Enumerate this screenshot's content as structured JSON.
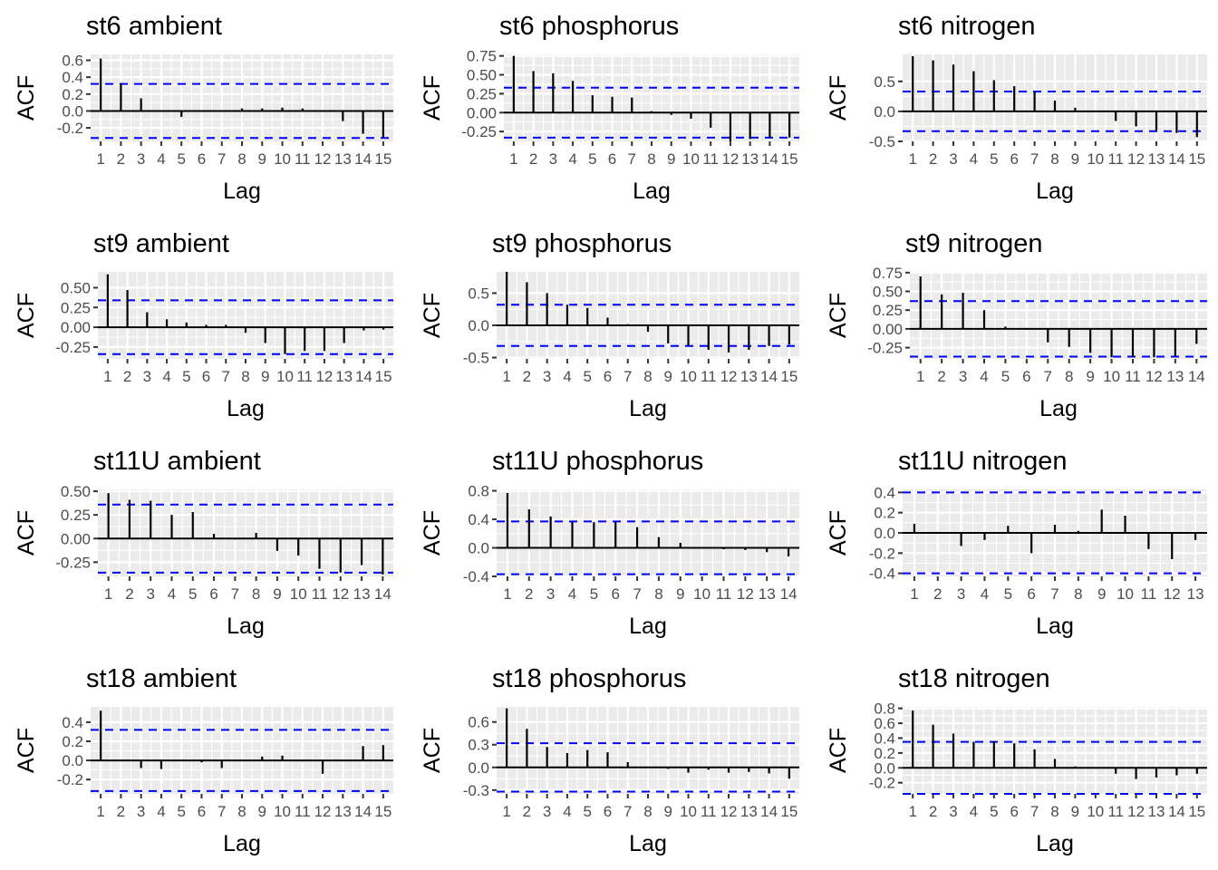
{
  "colors": {
    "panel_bg": "#ebebeb",
    "grid": "#ffffff",
    "bar": "#000000",
    "conf_line": "#0000ff",
    "tick_text": "#4d4d4d"
  },
  "chart_data": [
    {
      "type": "bar",
      "title": "st6 ambient",
      "xlabel": "Lag",
      "ylabel": "ACF",
      "xlim": [
        0.5,
        15.5
      ],
      "ylim": [
        -0.36,
        0.67
      ],
      "yticks": [
        -0.2,
        0.0,
        0.2,
        0.4,
        0.6
      ],
      "ytick_labels": [
        "-0.2",
        "0.0",
        "0.2",
        "0.4",
        "0.6"
      ],
      "conf_limit": 0.32,
      "lags": [
        1,
        2,
        3,
        4,
        5,
        6,
        7,
        8,
        9,
        10,
        11,
        12,
        13,
        14,
        15
      ],
      "values": [
        0.62,
        0.33,
        0.15,
        0.0,
        -0.07,
        -0.01,
        -0.01,
        0.03,
        0.03,
        0.04,
        0.03,
        -0.01,
        -0.12,
        -0.27,
        -0.32
      ]
    },
    {
      "type": "bar",
      "title": "st6 phosphorus",
      "xlabel": "Lag",
      "ylabel": "ACF",
      "xlim": [
        0.5,
        15.5
      ],
      "ylim": [
        -0.38,
        0.77
      ],
      "yticks": [
        -0.25,
        0.0,
        0.25,
        0.5,
        0.75
      ],
      "ytick_labels": [
        "-0.25",
        "0.00",
        "0.25",
        "0.50",
        "0.75"
      ],
      "conf_limit": 0.33,
      "lags": [
        1,
        2,
        3,
        4,
        5,
        6,
        7,
        8,
        9,
        10,
        11,
        12,
        13,
        14,
        15
      ],
      "values": [
        0.75,
        0.55,
        0.52,
        0.42,
        0.23,
        0.21,
        0.2,
        0.02,
        -0.03,
        -0.08,
        -0.2,
        -0.38,
        -0.35,
        -0.33,
        -0.33
      ]
    },
    {
      "type": "bar",
      "title": "st6 nitrogen",
      "xlabel": "Lag",
      "ylabel": "ACF",
      "xlim": [
        0.5,
        15.5
      ],
      "ylim": [
        -0.5,
        0.95
      ],
      "yticks": [
        -0.5,
        0.0,
        0.5
      ],
      "ytick_labels": [
        "-0.5",
        "0.0",
        "0.5"
      ],
      "conf_limit": 0.33,
      "lags": [
        1,
        2,
        3,
        4,
        5,
        6,
        7,
        8,
        9,
        10,
        11,
        12,
        13,
        14,
        15
      ],
      "values": [
        0.92,
        0.85,
        0.78,
        0.67,
        0.52,
        0.42,
        0.33,
        0.18,
        0.06,
        -0.01,
        -0.16,
        -0.25,
        -0.32,
        -0.36,
        -0.43
      ]
    },
    {
      "type": "bar",
      "title": "st9 ambient",
      "xlabel": "Lag",
      "ylabel": "ACF",
      "xlim": [
        0.5,
        15.5
      ],
      "ylim": [
        -0.4,
        0.7
      ],
      "yticks": [
        -0.25,
        0.0,
        0.25,
        0.5
      ],
      "ytick_labels": [
        "-0.25",
        "0.00",
        "0.25",
        "0.50"
      ],
      "conf_limit": 0.34,
      "lags": [
        1,
        2,
        3,
        4,
        5,
        6,
        7,
        8,
        9,
        10,
        11,
        12,
        13,
        14,
        15
      ],
      "values": [
        0.67,
        0.47,
        0.19,
        0.1,
        0.06,
        0.03,
        0.03,
        -0.07,
        -0.2,
        -0.34,
        -0.3,
        -0.3,
        -0.2,
        -0.04,
        -0.03
      ]
    },
    {
      "type": "bar",
      "title": "st9 phosphorus",
      "xlabel": "Lag",
      "ylabel": "ACF",
      "xlim": [
        0.5,
        15.5
      ],
      "ylim": [
        -0.52,
        0.83
      ],
      "yticks": [
        -0.5,
        0.0,
        0.5
      ],
      "ytick_labels": [
        "-0.5",
        "0.0",
        "0.5"
      ],
      "conf_limit": 0.32,
      "lags": [
        1,
        2,
        3,
        4,
        5,
        6,
        7,
        8,
        9,
        10,
        11,
        12,
        13,
        14,
        15
      ],
      "values": [
        0.83,
        0.67,
        0.5,
        0.32,
        0.27,
        0.12,
        0.02,
        -0.1,
        -0.28,
        -0.32,
        -0.38,
        -0.42,
        -0.38,
        -0.32,
        -0.3
      ]
    },
    {
      "type": "bar",
      "title": "st9 nitrogen",
      "xlabel": "Lag",
      "ylabel": "ACF",
      "xlim": [
        0.5,
        14.5
      ],
      "ylim": [
        -0.4,
        0.76
      ],
      "yticks": [
        -0.25,
        0.0,
        0.25,
        0.5,
        0.75
      ],
      "ytick_labels": [
        "-0.25",
        "0.00",
        "0.25",
        "0.50",
        "0.75"
      ],
      "conf_limit": 0.37,
      "lags": [
        1,
        2,
        3,
        4,
        5,
        6,
        7,
        8,
        9,
        10,
        11,
        12,
        13,
        14
      ],
      "values": [
        0.7,
        0.46,
        0.48,
        0.25,
        0.03,
        -0.01,
        -0.18,
        -0.24,
        -0.32,
        -0.38,
        -0.38,
        -0.38,
        -0.36,
        -0.2
      ]
    },
    {
      "type": "bar",
      "title": "st11U ambient",
      "xlabel": "Lag",
      "ylabel": "ACF",
      "xlim": [
        0.5,
        14.5
      ],
      "ylim": [
        -0.4,
        0.52
      ],
      "yticks": [
        -0.25,
        0.0,
        0.25,
        0.5
      ],
      "ytick_labels": [
        "-0.25",
        "0.00",
        "0.25",
        "0.50"
      ],
      "conf_limit": 0.36,
      "lags": [
        1,
        2,
        3,
        4,
        5,
        6,
        7,
        8,
        9,
        10,
        11,
        12,
        13,
        14
      ],
      "values": [
        0.48,
        0.41,
        0.4,
        0.25,
        0.28,
        0.05,
        -0.01,
        0.06,
        -0.13,
        -0.18,
        -0.32,
        -0.36,
        -0.28,
        -0.38
      ]
    },
    {
      "type": "bar",
      "title": "st11U phosphorus",
      "xlabel": "Lag",
      "ylabel": "ACF",
      "xlim": [
        0.5,
        14.5
      ],
      "ylim": [
        -0.4,
        0.82
      ],
      "yticks": [
        -0.4,
        0.0,
        0.4,
        0.8
      ],
      "ytick_labels": [
        "-0.4",
        "0.0",
        "0.4",
        "0.8"
      ],
      "conf_limit": 0.37,
      "lags": [
        1,
        2,
        3,
        4,
        5,
        6,
        7,
        8,
        9,
        10,
        11,
        12,
        13,
        14
      ],
      "values": [
        0.77,
        0.54,
        0.44,
        0.36,
        0.36,
        0.36,
        0.29,
        0.15,
        0.07,
        -0.01,
        -0.02,
        -0.03,
        -0.06,
        -0.12
      ]
    },
    {
      "type": "bar",
      "title": "st11U nitrogen",
      "xlabel": "Lag",
      "ylabel": "ACF",
      "xlim": [
        0.5,
        13.5
      ],
      "ylim": [
        -0.43,
        0.43
      ],
      "yticks": [
        -0.4,
        -0.2,
        0.0,
        0.2,
        0.4
      ],
      "ytick_labels": [
        "-0.4",
        "-0.2",
        "0.0",
        "0.2",
        "0.4"
      ],
      "conf_limit": 0.4,
      "lags": [
        1,
        2,
        3,
        4,
        5,
        6,
        7,
        8,
        9,
        10,
        11,
        12,
        13
      ],
      "values": [
        0.09,
        0.01,
        -0.13,
        -0.07,
        0.07,
        -0.2,
        0.08,
        0.02,
        0.23,
        0.17,
        -0.16,
        -0.26,
        -0.07
      ]
    },
    {
      "type": "bar",
      "title": "st18 ambient",
      "xlabel": "Lag",
      "ylabel": "ACF",
      "xlim": [
        0.5,
        15.5
      ],
      "ylim": [
        -0.35,
        0.56
      ],
      "yticks": [
        -0.2,
        0.0,
        0.2,
        0.4
      ],
      "ytick_labels": [
        "-0.2",
        "0.0",
        "0.2",
        "0.4"
      ],
      "conf_limit": 0.32,
      "lags": [
        1,
        2,
        3,
        4,
        5,
        6,
        7,
        8,
        9,
        10,
        11,
        12,
        13,
        14,
        15
      ],
      "values": [
        0.52,
        0.0,
        -0.08,
        -0.09,
        0.0,
        -0.02,
        -0.08,
        0.0,
        0.04,
        0.05,
        -0.01,
        -0.14,
        0.0,
        0.15,
        0.16
      ]
    },
    {
      "type": "bar",
      "title": "st18 phosphorus",
      "xlabel": "Lag",
      "ylabel": "ACF",
      "xlim": [
        0.5,
        15.5
      ],
      "ylim": [
        -0.35,
        0.8
      ],
      "yticks": [
        -0.3,
        0.0,
        0.3,
        0.6
      ],
      "ytick_labels": [
        "-0.3",
        "0.0",
        "0.3",
        "0.6"
      ],
      "conf_limit": 0.32,
      "lags": [
        1,
        2,
        3,
        4,
        5,
        6,
        7,
        8,
        9,
        10,
        11,
        12,
        13,
        14,
        15
      ],
      "values": [
        0.78,
        0.51,
        0.27,
        0.19,
        0.23,
        0.2,
        0.07,
        0.0,
        -0.02,
        -0.07,
        -0.03,
        -0.07,
        -0.06,
        -0.08,
        -0.15
      ]
    },
    {
      "type": "bar",
      "title": "st18 nitrogen",
      "xlabel": "Lag",
      "ylabel": "ACF",
      "xlim": [
        0.5,
        15.5
      ],
      "ylim": [
        -0.35,
        0.82
      ],
      "yticks": [
        -0.2,
        0.0,
        0.2,
        0.4,
        0.6,
        0.8
      ],
      "ytick_labels": [
        "-0.2",
        "0.0",
        "0.2",
        "0.4",
        "0.6",
        "0.8"
      ],
      "conf_limit": 0.35,
      "lags": [
        1,
        2,
        3,
        4,
        5,
        6,
        7,
        8,
        9,
        10,
        11,
        12,
        13,
        14,
        15
      ],
      "values": [
        0.77,
        0.58,
        0.46,
        0.35,
        0.36,
        0.33,
        0.25,
        0.12,
        0.02,
        -0.01,
        -0.08,
        -0.15,
        -0.13,
        -0.1,
        -0.08
      ]
    }
  ]
}
